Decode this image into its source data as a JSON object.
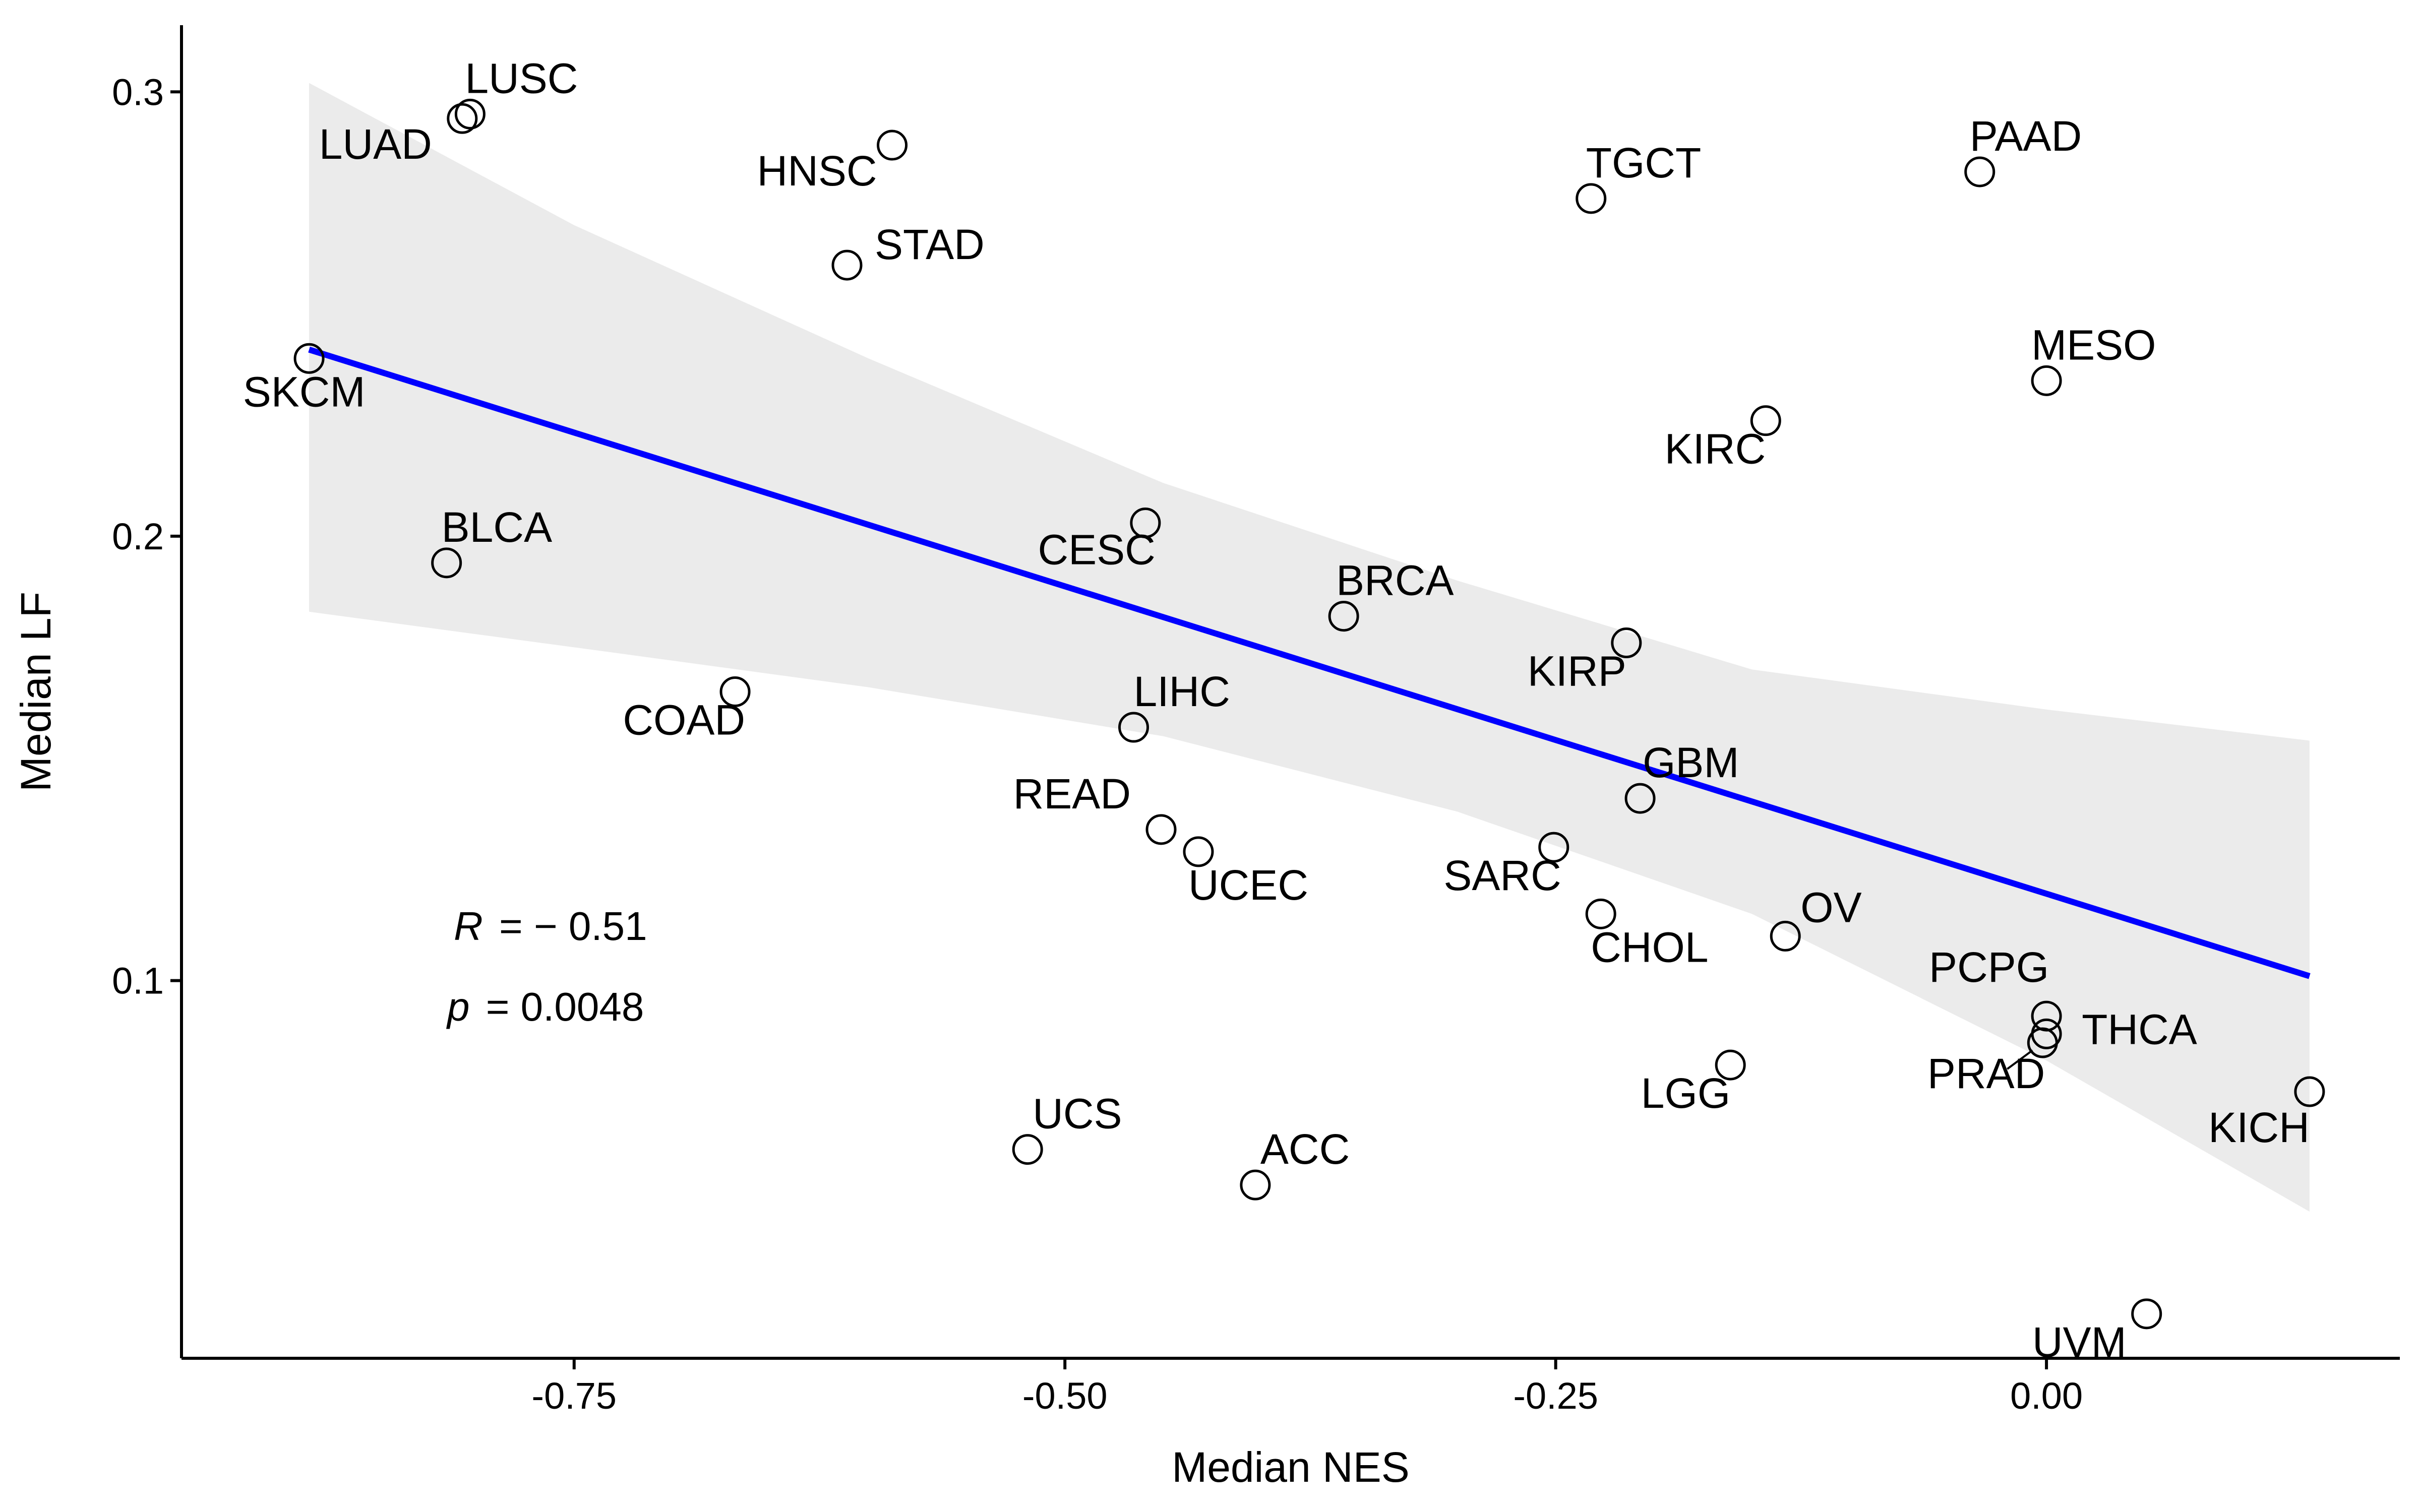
{
  "chart_data": {
    "type": "scatter",
    "title": "",
    "xlabel": "Median NES",
    "ylabel": "Median LF",
    "xlim": [
      -0.95,
      0.18
    ],
    "ylim": [
      0.015,
      0.315
    ],
    "x_ticks": [
      -0.75,
      -0.5,
      -0.25,
      0.0
    ],
    "x_tick_labels": [
      "-0.75",
      "-0.50",
      "-0.25",
      "0.00"
    ],
    "y_ticks": [
      0.1,
      0.2,
      0.3
    ],
    "y_tick_labels": [
      "0.1",
      "0.2",
      "0.3"
    ],
    "grid": false,
    "legend": "none",
    "points": [
      {
        "label": "LUSC",
        "x": -0.803,
        "y": 0.295
      },
      {
        "label": "LUAD",
        "x": -0.807,
        "y": 0.294
      },
      {
        "label": "HNSC",
        "x": -0.588,
        "y": 0.288
      },
      {
        "label": "STAD",
        "x": -0.611,
        "y": 0.261
      },
      {
        "label": "SKCM",
        "x": -0.885,
        "y": 0.24
      },
      {
        "label": "BLCA",
        "x": -0.815,
        "y": 0.194
      },
      {
        "label": "COAD",
        "x": -0.668,
        "y": 0.165
      },
      {
        "label": "CESC",
        "x": -0.459,
        "y": 0.203
      },
      {
        "label": "LIHC",
        "x": -0.465,
        "y": 0.157
      },
      {
        "label": "READ",
        "x": -0.451,
        "y": 0.134
      },
      {
        "label": "UCEC",
        "x": -0.432,
        "y": 0.129
      },
      {
        "label": "UCS",
        "x": -0.519,
        "y": 0.062
      },
      {
        "label": "ACC",
        "x": -0.403,
        "y": 0.054
      },
      {
        "label": "BRCA",
        "x": -0.358,
        "y": 0.182
      },
      {
        "label": "TGCT",
        "x": -0.232,
        "y": 0.276
      },
      {
        "label": "KIRC",
        "x": -0.143,
        "y": 0.226
      },
      {
        "label": "KIRP",
        "x": -0.214,
        "y": 0.176
      },
      {
        "label": "GBM",
        "x": -0.207,
        "y": 0.141
      },
      {
        "label": "SARC",
        "x": -0.251,
        "y": 0.13
      },
      {
        "label": "CHOL",
        "x": -0.227,
        "y": 0.115
      },
      {
        "label": "OV",
        "x": -0.133,
        "y": 0.11
      },
      {
        "label": "LGG",
        "x": -0.161,
        "y": 0.081
      },
      {
        "label": "PAAD",
        "x": -0.034,
        "y": 0.282
      },
      {
        "label": "MESO",
        "x": 0.0,
        "y": 0.235
      },
      {
        "label": "PCPG",
        "x": 0.0,
        "y": 0.092
      },
      {
        "label": "THCA",
        "x": 0.0,
        "y": 0.088
      },
      {
        "label": "PRAD",
        "x": -0.002,
        "y": 0.086
      },
      {
        "label": "KICH",
        "x": 0.134,
        "y": 0.075
      },
      {
        "label": "UVM",
        "x": 0.051,
        "y": 0.025
      }
    ],
    "regression": {
      "x_start": -0.885,
      "y_start": 0.242,
      "x_end": 0.134,
      "y_end": 0.101,
      "color": "#0000FF"
    },
    "confidence_band": {
      "x": [
        -0.885,
        -0.75,
        -0.6,
        -0.45,
        -0.3,
        -0.15,
        0.0,
        0.134
      ],
      "upper": [
        0.302,
        0.27,
        0.24,
        0.212,
        0.19,
        0.17,
        0.161,
        0.154
      ],
      "lower": [
        0.183,
        0.175,
        0.166,
        0.155,
        0.138,
        0.115,
        0.082,
        0.048
      ],
      "color": "#EBEBEB"
    },
    "annotation": {
      "r_symbol": "R",
      "r_value": "= − 0.51",
      "p_symbol": "p",
      "p_value": "= 0.0048"
    }
  }
}
